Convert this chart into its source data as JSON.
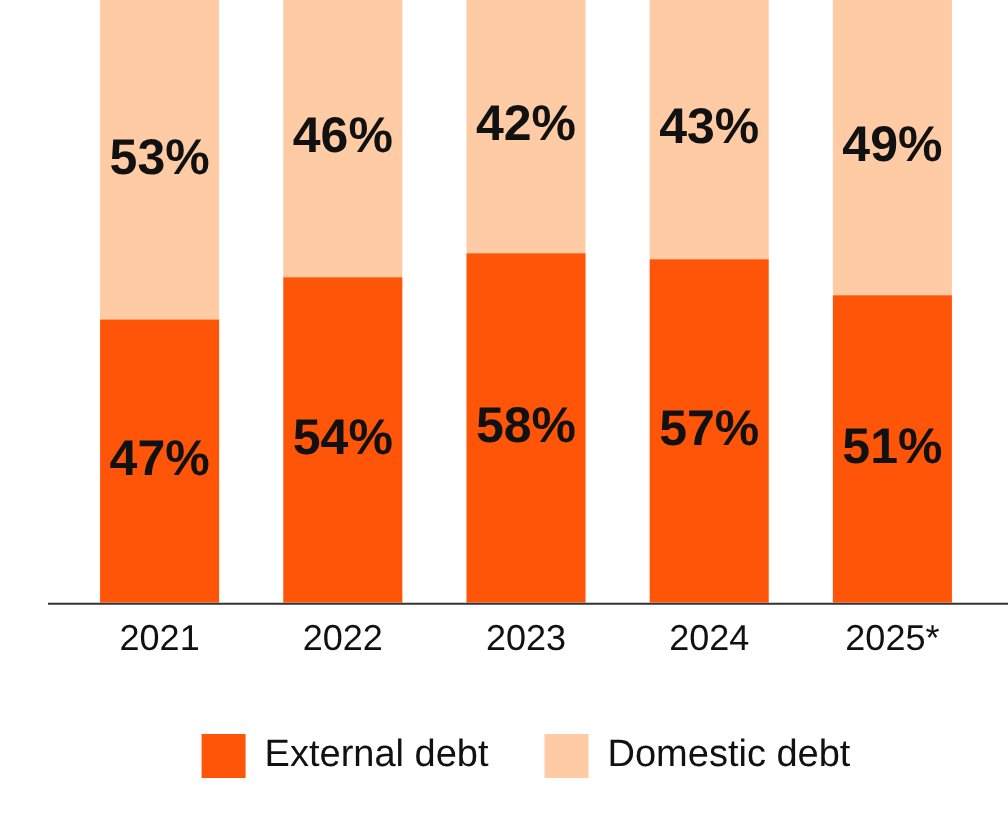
{
  "chart_data": {
    "type": "bar",
    "stacked": true,
    "categories": [
      "2021",
      "2022",
      "2023",
      "2024",
      "2025*"
    ],
    "series": [
      {
        "name": "External debt",
        "color": "#ff5508",
        "values": [
          47,
          54,
          58,
          57,
          51
        ],
        "value_labels": [
          "47%",
          "54%",
          "58%",
          "57%",
          "51%"
        ]
      },
      {
        "name": "Domestic debt",
        "color": "#ffcba4",
        "values": [
          53,
          46,
          42,
          43,
          49
        ],
        "value_labels": [
          "53%",
          "46%",
          "42%",
          "43%",
          "49%"
        ]
      }
    ],
    "tick_labels": "x",
    "grid": false,
    "legend": "bottom"
  }
}
